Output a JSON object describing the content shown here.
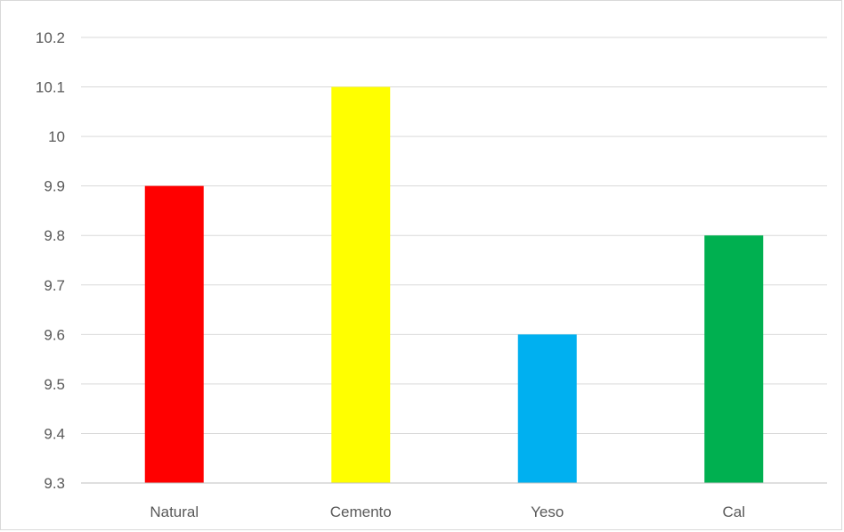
{
  "chart_data": {
    "type": "bar",
    "title": "",
    "xlabel": "",
    "ylabel": "",
    "categories": [
      "Natural",
      "Cemento",
      "Yeso",
      "Cal"
    ],
    "values": [
      9.9,
      10.1,
      9.6,
      9.8
    ],
    "colors": [
      "#FF0000",
      "#FFFF00",
      "#00B0F0",
      "#00B050"
    ],
    "ylim": [
      9.3,
      10.2
    ],
    "yticks": [
      9.3,
      9.4,
      9.5,
      9.6,
      9.7,
      9.8,
      9.9,
      10,
      10.1,
      10.2
    ],
    "ytick_labels": [
      "9.3",
      "9.4",
      "9.5",
      "9.6",
      "9.7",
      "9.8",
      "9.9",
      "10",
      "10.1",
      "10.2"
    ],
    "grid": true,
    "legend": "none"
  }
}
